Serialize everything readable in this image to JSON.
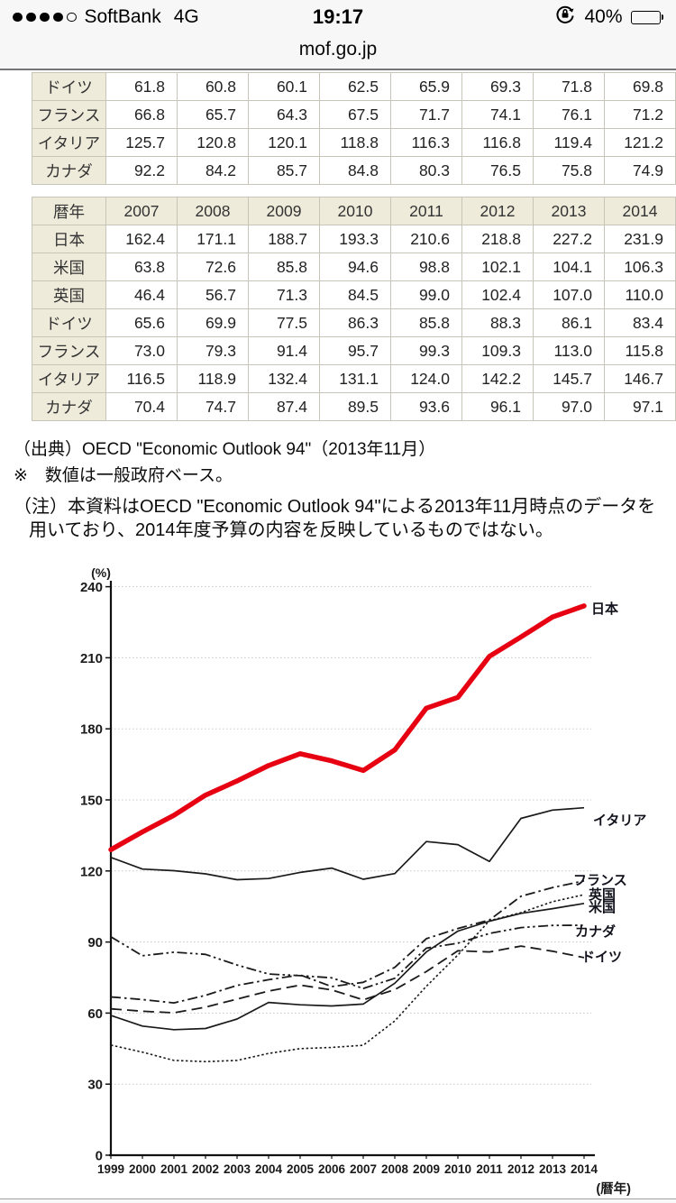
{
  "status_bar": {
    "carrier": "SoftBank",
    "network": "4G",
    "time": "19:17",
    "battery_percent": "40%",
    "signal_filled_dots": 4,
    "signal_total_dots": 5
  },
  "url_bar": {
    "domain": "mof.go.jp"
  },
  "table_partial": {
    "rows": [
      {
        "label": "ドイツ",
        "values": [
          "61.8",
          "60.8",
          "60.1",
          "62.5",
          "65.9",
          "69.3",
          "71.8",
          "69.8"
        ]
      },
      {
        "label": "フランス",
        "values": [
          "66.8",
          "65.7",
          "64.3",
          "67.5",
          "71.7",
          "74.1",
          "76.1",
          "71.2"
        ]
      },
      {
        "label": "イタリア",
        "values": [
          "125.7",
          "120.8",
          "120.1",
          "118.8",
          "116.3",
          "116.8",
          "119.4",
          "121.2"
        ]
      },
      {
        "label": "カナダ",
        "values": [
          "92.2",
          "84.2",
          "85.7",
          "84.8",
          "80.3",
          "76.5",
          "75.8",
          "74.9"
        ]
      }
    ]
  },
  "table_main": {
    "header": [
      "暦年",
      "2007",
      "2008",
      "2009",
      "2010",
      "2011",
      "2012",
      "2013",
      "2014"
    ],
    "rows": [
      {
        "label": "日本",
        "values": [
          "162.4",
          "171.1",
          "188.7",
          "193.3",
          "210.6",
          "218.8",
          "227.2",
          "231.9"
        ]
      },
      {
        "label": "米国",
        "values": [
          "63.8",
          "72.6",
          "85.8",
          "94.6",
          "98.8",
          "102.1",
          "104.1",
          "106.3"
        ]
      },
      {
        "label": "英国",
        "values": [
          "46.4",
          "56.7",
          "71.3",
          "84.5",
          "99.0",
          "102.4",
          "107.0",
          "110.0"
        ]
      },
      {
        "label": "ドイツ",
        "values": [
          "65.6",
          "69.9",
          "77.5",
          "86.3",
          "85.8",
          "88.3",
          "86.1",
          "83.4"
        ]
      },
      {
        "label": "フランス",
        "values": [
          "73.0",
          "79.3",
          "91.4",
          "95.7",
          "99.3",
          "109.3",
          "113.0",
          "115.8"
        ]
      },
      {
        "label": "イタリア",
        "values": [
          "116.5",
          "118.9",
          "132.4",
          "131.1",
          "124.0",
          "142.2",
          "145.7",
          "146.7"
        ]
      },
      {
        "label": "カナダ",
        "values": [
          "70.4",
          "74.7",
          "87.4",
          "89.5",
          "93.6",
          "96.1",
          "97.0",
          "97.1"
        ]
      }
    ]
  },
  "notes": {
    "source": "（出典）OECD \"Economic Outlook 94\"（2013年11月）",
    "basis": "※　数値は一般政府ベース。",
    "caption": "（注）本資料はOECD \"Economic Outlook 94\"による2013年11月時点のデータを用いており、2014年度予算の内容を反映しているものではない。"
  },
  "chart_data": {
    "type": "line",
    "title": "",
    "ylabel": "(%)",
    "xlabel": "(暦年)",
    "ylim": [
      0,
      240
    ],
    "ytick_step": 30,
    "grid": true,
    "legend_position": "right-of-line-ends",
    "x": [
      1999,
      2000,
      2001,
      2002,
      2003,
      2004,
      2005,
      2006,
      2007,
      2008,
      2009,
      2010,
      2011,
      2012,
      2013,
      2014
    ],
    "series": [
      {
        "name": "日本",
        "color": "#e60012",
        "style": "solid-thick",
        "values": [
          129,
          136.5,
          143.5,
          152,
          158,
          164.5,
          169.5,
          166.5,
          162.4,
          171.1,
          188.7,
          193.3,
          210.6,
          218.8,
          227.2,
          231.9
        ]
      },
      {
        "name": "イタリア",
        "color": "#1a1a1a",
        "style": "solid",
        "values": [
          125.7,
          120.8,
          120.1,
          118.8,
          116.3,
          116.8,
          119.4,
          121.2,
          116.5,
          118.9,
          132.4,
          131.1,
          124.0,
          142.2,
          145.7,
          146.7
        ]
      },
      {
        "name": "フランス",
        "color": "#1a1a1a",
        "style": "dash-dot",
        "values": [
          66.8,
          65.7,
          64.3,
          67.5,
          71.7,
          74.1,
          76.1,
          71.2,
          73.0,
          79.3,
          91.4,
          95.7,
          99.3,
          109.3,
          113.0,
          115.8
        ]
      },
      {
        "name": "英国",
        "color": "#1a1a1a",
        "style": "dotted",
        "values": [
          46.5,
          43.5,
          40,
          39.5,
          40,
          43,
          45,
          45.5,
          46.4,
          56.7,
          71.3,
          84.5,
          99.0,
          102.4,
          107.0,
          110.0
        ]
      },
      {
        "name": "米国",
        "color": "#1a1a1a",
        "style": "solid",
        "values": [
          59,
          54.5,
          53,
          53.5,
          57.5,
          64.5,
          63.5,
          63,
          63.8,
          72.6,
          85.8,
          94.6,
          98.8,
          102.1,
          104.1,
          106.3
        ]
      },
      {
        "name": "カナダ",
        "color": "#1a1a1a",
        "style": "dash-dot-dot",
        "values": [
          92.2,
          84.2,
          85.7,
          84.8,
          80.3,
          76.5,
          75.8,
          74.9,
          70.4,
          74.7,
          87.4,
          89.5,
          93.6,
          96.1,
          97.0,
          97.1
        ]
      },
      {
        "name": "ドイツ",
        "color": "#1a1a1a",
        "style": "dashed",
        "values": [
          61.8,
          60.8,
          60.1,
          62.5,
          65.9,
          69.3,
          71.8,
          69.8,
          65.6,
          69.9,
          77.5,
          86.3,
          85.8,
          88.3,
          86.1,
          83.4
        ]
      }
    ]
  }
}
